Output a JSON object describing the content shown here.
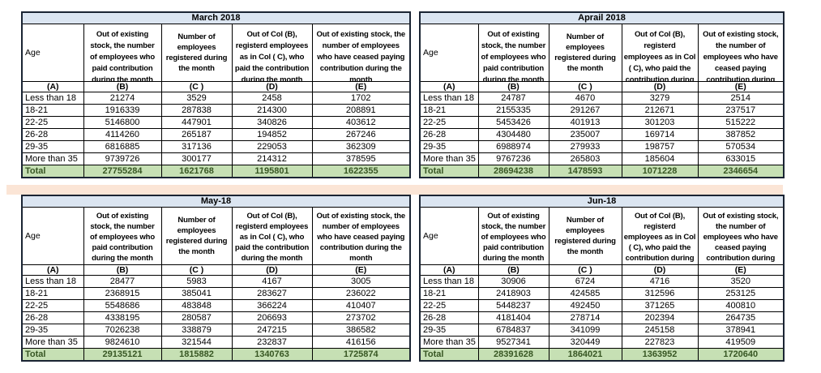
{
  "colors": {
    "title_row_bg": "#dbe5f1",
    "total_row_bg": "#c6e0b4",
    "total_row_text": "#375623",
    "separator_band": "#fbe5d6",
    "border": "#000000"
  },
  "tables": [
    {
      "title": "March 2018",
      "age_header": "Age",
      "col_letters": [
        "(A)",
        "(B)",
        "(C )",
        "(D)",
        "(E)"
      ],
      "headers": [
        "Out of existing\nstock, the number\nof employees who\npaid contribution\nduring the month",
        "Number of\nemployees\nregistered during\nthe month",
        "Out of Col (B),\nregisterd employees\nas in Col ( C), who\npaid the contribution\nduring the month",
        "Out of existing stock, the\nnumber of employees\nwho have ceased paying\ncontribution during the\nmonth"
      ],
      "rows": [
        {
          "age": "Less than 18",
          "values": [
            "21274",
            "3529",
            "2458",
            "1702"
          ]
        },
        {
          "age": "18-21",
          "values": [
            "1916339",
            "287838",
            "214300",
            "208891"
          ]
        },
        {
          "age": "22-25",
          "values": [
            "5146800",
            "447901",
            "340826",
            "403612"
          ]
        },
        {
          "age": "26-28",
          "values": [
            "4114260",
            "265187",
            "194852",
            "267246"
          ]
        },
        {
          "age": "29-35",
          "values": [
            "6816885",
            "317136",
            "229053",
            "362309"
          ]
        },
        {
          "age": "More than 35",
          "values": [
            "9739726",
            "300177",
            "214312",
            "378595"
          ]
        }
      ],
      "total_label": "Total",
      "total_values": [
        "27755284",
        "1621768",
        "1195801",
        "1622355"
      ]
    },
    {
      "title": "Aprail 2018",
      "age_header": "Age",
      "col_letters": [
        "(A)",
        "(B)",
        "(C )",
        "(D)",
        "(E)"
      ],
      "headers": [
        "Out of existing\nstock, the number\nof employees who\npaid contribution\nduring the month",
        "Number of\nemployees\nregistered during\nthe month",
        "Out of Col (B),\nregisterd\nemployees as in Col\n( C), who paid the\ncontribution during",
        "Out of existing stock,\nthe number of\nemployees who have\nceased paying\ncontribution during"
      ],
      "rows": [
        {
          "age": "Less than 18",
          "values": [
            "24787",
            "4670",
            "3279",
            "2514"
          ]
        },
        {
          "age": "18-21",
          "values": [
            "2155335",
            "291267",
            "212671",
            "237517"
          ]
        },
        {
          "age": "22-25",
          "values": [
            "5453426",
            "401913",
            "301203",
            "515222"
          ]
        },
        {
          "age": "26-28",
          "values": [
            "4304480",
            "235007",
            "169714",
            "387852"
          ]
        },
        {
          "age": "29-35",
          "values": [
            "6988974",
            "279933",
            "198757",
            "570534"
          ]
        },
        {
          "age": "More than 35",
          "values": [
            "9767236",
            "265803",
            "185604",
            "633015"
          ]
        }
      ],
      "total_label": "Total",
      "total_values": [
        "28694238",
        "1478593",
        "1071228",
        "2346654"
      ]
    },
    {
      "title": "May-18",
      "age_header": "Age",
      "col_letters": [
        "(A)",
        "(B)",
        "(C )",
        "(D)",
        "(E)"
      ],
      "headers": [
        "Out of existing\nstock, the number\nof employees who\npaid contribution\nduring the month",
        "Number of\nemployees\nregistered during\nthe month",
        "Out of Col (B),\nregisterd employees\nas in Col ( C), who\npaid the contribution\nduring the month",
        "Out of existing stock, the\nnumber of employees\nwho have ceased paying\ncontribution during the\nmonth"
      ],
      "rows": [
        {
          "age": "Less than 18",
          "values": [
            "28477",
            "5983",
            "4167",
            "3005"
          ]
        },
        {
          "age": "18-21",
          "values": [
            "2368915",
            "385041",
            "283627",
            "236022"
          ]
        },
        {
          "age": "22-25",
          "values": [
            "5548686",
            "483848",
            "366224",
            "410407"
          ]
        },
        {
          "age": "26-28",
          "values": [
            "4338195",
            "280587",
            "206693",
            "273702"
          ]
        },
        {
          "age": "29-35",
          "values": [
            "7026238",
            "338879",
            "247215",
            "386582"
          ]
        },
        {
          "age": "More than 35",
          "values": [
            "9824610",
            "321544",
            "232837",
            "416156"
          ]
        }
      ],
      "total_label": "Total",
      "total_values": [
        "29135121",
        "1815882",
        "1340763",
        "1725874"
      ]
    },
    {
      "title": "Jun-18",
      "age_header": "Age",
      "col_letters": [
        "(A)",
        "(B)",
        "(C )",
        "(D)",
        "(E)"
      ],
      "headers": [
        "Out of existing\nstock, the number\nof employees who\npaid contribution\nduring the month",
        "Number of\nemployees\nregistered during\nthe month",
        "Out of Col (B),\nregisterd\nemployees as in Col\n( C), who paid the\ncontribution during",
        "Out of existing stock,\nthe number of\nemployees who have\nceased paying\ncontribution during"
      ],
      "rows": [
        {
          "age": "Less than 18",
          "values": [
            "30906",
            "6724",
            "4716",
            "3520"
          ]
        },
        {
          "age": "18-21",
          "values": [
            "2418903",
            "424585",
            "312596",
            "253125"
          ]
        },
        {
          "age": "22-25",
          "values": [
            "5448237",
            "492450",
            "371265",
            "400810"
          ]
        },
        {
          "age": "26-28",
          "values": [
            "4181404",
            "278714",
            "202394",
            "264735"
          ]
        },
        {
          "age": "29-35",
          "values": [
            "6784837",
            "341099",
            "245158",
            "378941"
          ]
        },
        {
          "age": "More than 35",
          "values": [
            "9527341",
            "320449",
            "227823",
            "419509"
          ]
        }
      ],
      "total_label": "Total",
      "total_values": [
        "28391628",
        "1864021",
        "1363952",
        "1720640"
      ]
    }
  ]
}
